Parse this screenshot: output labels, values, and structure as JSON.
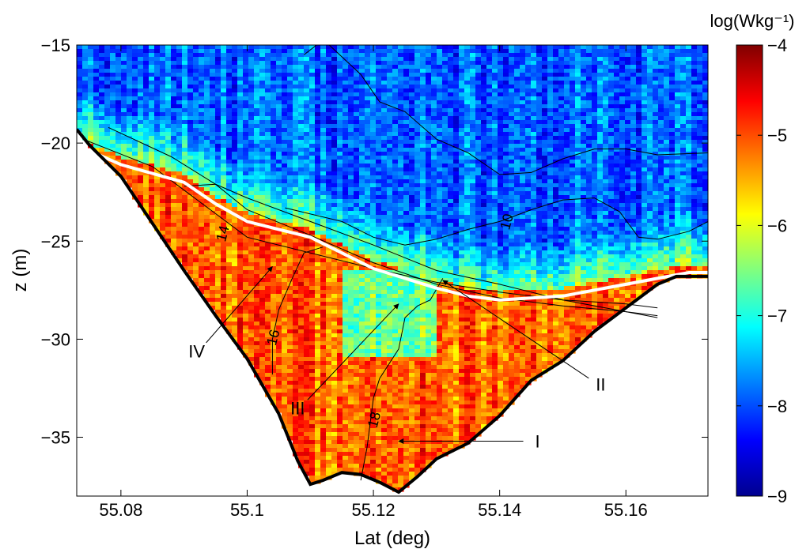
{
  "chart_data": {
    "type": "heatmap",
    "title": "",
    "xlabel": "Lat (deg)",
    "ylabel": "z (m)",
    "xlim": [
      55.073,
      55.173
    ],
    "ylim": [
      -38,
      -15
    ],
    "xticks": [
      55.08,
      55.1,
      55.12,
      55.14,
      55.16
    ],
    "xtick_labels": [
      "55.08",
      "55.1",
      "55.12",
      "55.14",
      "55.16"
    ],
    "yticks": [
      -35,
      -30,
      -25,
      -20,
      -15
    ],
    "ytick_labels": [
      "−35",
      "−30",
      "−25",
      "−20",
      "−15"
    ],
    "grid": false,
    "colorbar": {
      "label": "log(Wkg⁻¹)",
      "range": [
        -9,
        -4
      ],
      "ticks": [
        -9,
        -8,
        -7,
        -6,
        -5,
        -4
      ],
      "tick_labels": [
        "−9",
        "−8",
        "−7",
        "−6",
        "−5",
        "−4"
      ],
      "colormap": "jet"
    },
    "bottom_profile": {
      "lat": [
        55.073,
        55.075,
        55.08,
        55.085,
        55.09,
        55.095,
        55.1,
        55.105,
        55.108,
        55.11,
        55.112,
        55.115,
        55.118,
        55.121,
        55.124,
        55.127,
        55.13,
        55.135,
        55.14,
        55.145,
        55.15,
        55.155,
        55.16,
        55.165,
        55.168,
        55.173
      ],
      "z": [
        -19.3,
        -20.1,
        -21.7,
        -24.1,
        -26.5,
        -28.8,
        -31.0,
        -33.8,
        -36.2,
        -37.4,
        -37.2,
        -36.8,
        -36.9,
        -37.3,
        -37.8,
        -37.0,
        -36.1,
        -35.3,
        -33.9,
        -32.1,
        -31.1,
        -29.6,
        -28.4,
        -27.2,
        -26.8,
        -26.8
      ]
    },
    "interface_line": {
      "color": "#ffffff",
      "lat": [
        55.073,
        55.08,
        55.09,
        55.095,
        55.1,
        55.105,
        55.11,
        55.115,
        55.12,
        55.125,
        55.13,
        55.135,
        55.14,
        55.145,
        55.15,
        55.155,
        55.16,
        55.165,
        55.17,
        55.173
      ],
      "z": [
        -20.1,
        -21.1,
        -22.0,
        -23.1,
        -24.0,
        -24.4,
        -24.8,
        -25.6,
        -26.4,
        -26.9,
        -27.4,
        -27.8,
        -28.0,
        -27.9,
        -27.8,
        -27.5,
        -27.2,
        -26.9,
        -26.6,
        -26.6
      ]
    },
    "contour_lines": [
      {
        "label": "10",
        "label_at": [
          55.141,
          -24.0
        ],
        "lat": [
          55.106,
          55.115,
          55.12,
          55.125,
          55.13,
          55.135,
          55.14,
          55.145,
          55.15,
          55.155,
          55.159,
          55.162,
          55.165,
          55.17,
          55.173
        ],
        "z": [
          -23.3,
          -24.0,
          -24.8,
          -25.2,
          -24.9,
          -24.4,
          -24.0,
          -23.4,
          -22.9,
          -22.8,
          -23.5,
          -24.8,
          -24.9,
          -24.5,
          -24.0
        ]
      },
      {
        "label": "",
        "lat": [
          55.113,
          55.118,
          55.121,
          55.125,
          55.13,
          55.135,
          55.14,
          55.145,
          55.15,
          55.155,
          55.16,
          55.165,
          55.173
        ],
        "z": [
          -15.0,
          -16.5,
          -17.9,
          -18.4,
          -19.8,
          -20.5,
          -21.6,
          -21.5,
          -20.8,
          -20.3,
          -20.3,
          -20.6,
          -20.5
        ]
      },
      {
        "label": "",
        "lat": [
          55.109,
          55.111
        ],
        "z": [
          -15.5,
          -15.0
        ]
      },
      {
        "label": "14",
        "label_at": [
          55.096,
          -24.6
        ],
        "lat": [
          55.074,
          55.085,
          55.09,
          55.095,
          55.1,
          55.11,
          55.12,
          55.13,
          55.14,
          55.15,
          55.16,
          55.165
        ],
        "z": [
          -19.8,
          -21.2,
          -22.4,
          -23.6,
          -24.8,
          -25.6,
          -26.4,
          -27.1,
          -27.6,
          -28.0,
          -28.2,
          -28.4
        ]
      },
      {
        "label": "",
        "lat": [
          55.078,
          55.088,
          55.095,
          55.1,
          55.11,
          55.12,
          55.13,
          55.14,
          55.15,
          55.16,
          55.165
        ],
        "z": [
          -19.2,
          -20.7,
          -22.1,
          -23.4,
          -24.7,
          -26.1,
          -27.2,
          -27.9,
          -28.3,
          -28.6,
          -28.8
        ]
      },
      {
        "label": "",
        "lat": [
          55.09,
          55.095,
          55.1,
          55.11,
          55.12,
          55.13,
          55.14,
          55.15,
          55.16,
          55.165
        ],
        "z": [
          -22.2,
          -22.1,
          -22.8,
          -24.0,
          -25.2,
          -26.5,
          -27.2,
          -28.0,
          -28.6,
          -28.9
        ]
      },
      {
        "label": "16",
        "label_at": [
          55.104,
          -29.9
        ],
        "lat": [
          55.112,
          55.109,
          55.107,
          55.105,
          55.104,
          55.104
        ],
        "z": [
          -25.3,
          -25.6,
          -27.0,
          -28.5,
          -30.0,
          -31.8
        ]
      },
      {
        "label": "18",
        "label_at": [
          55.12,
          -34.1
        ],
        "lat": [
          55.131,
          55.129,
          55.127,
          55.125,
          55.124,
          55.121,
          55.12,
          55.119,
          55.118
        ],
        "z": [
          -26.9,
          -28.0,
          -28.3,
          -28.9,
          -30.5,
          -32.0,
          -33.0,
          -35.5,
          -37.2
        ]
      }
    ],
    "annotations": [
      {
        "label": "I",
        "text_at": [
          55.146,
          -35.2
        ],
        "arrow_to": [
          55.124,
          -35.2
        ]
      },
      {
        "label": "II",
        "text_at": [
          55.156,
          -32.3
        ],
        "arrow_to": [
          55.131,
          -27.0
        ]
      },
      {
        "label": "III",
        "text_at": [
          55.108,
          -33.5
        ],
        "arrow_to": [
          55.124,
          -28.2
        ]
      },
      {
        "label": "IV",
        "text_at": [
          55.092,
          -30.6
        ],
        "arrow_to": [
          55.104,
          -26.3
        ]
      }
    ]
  }
}
